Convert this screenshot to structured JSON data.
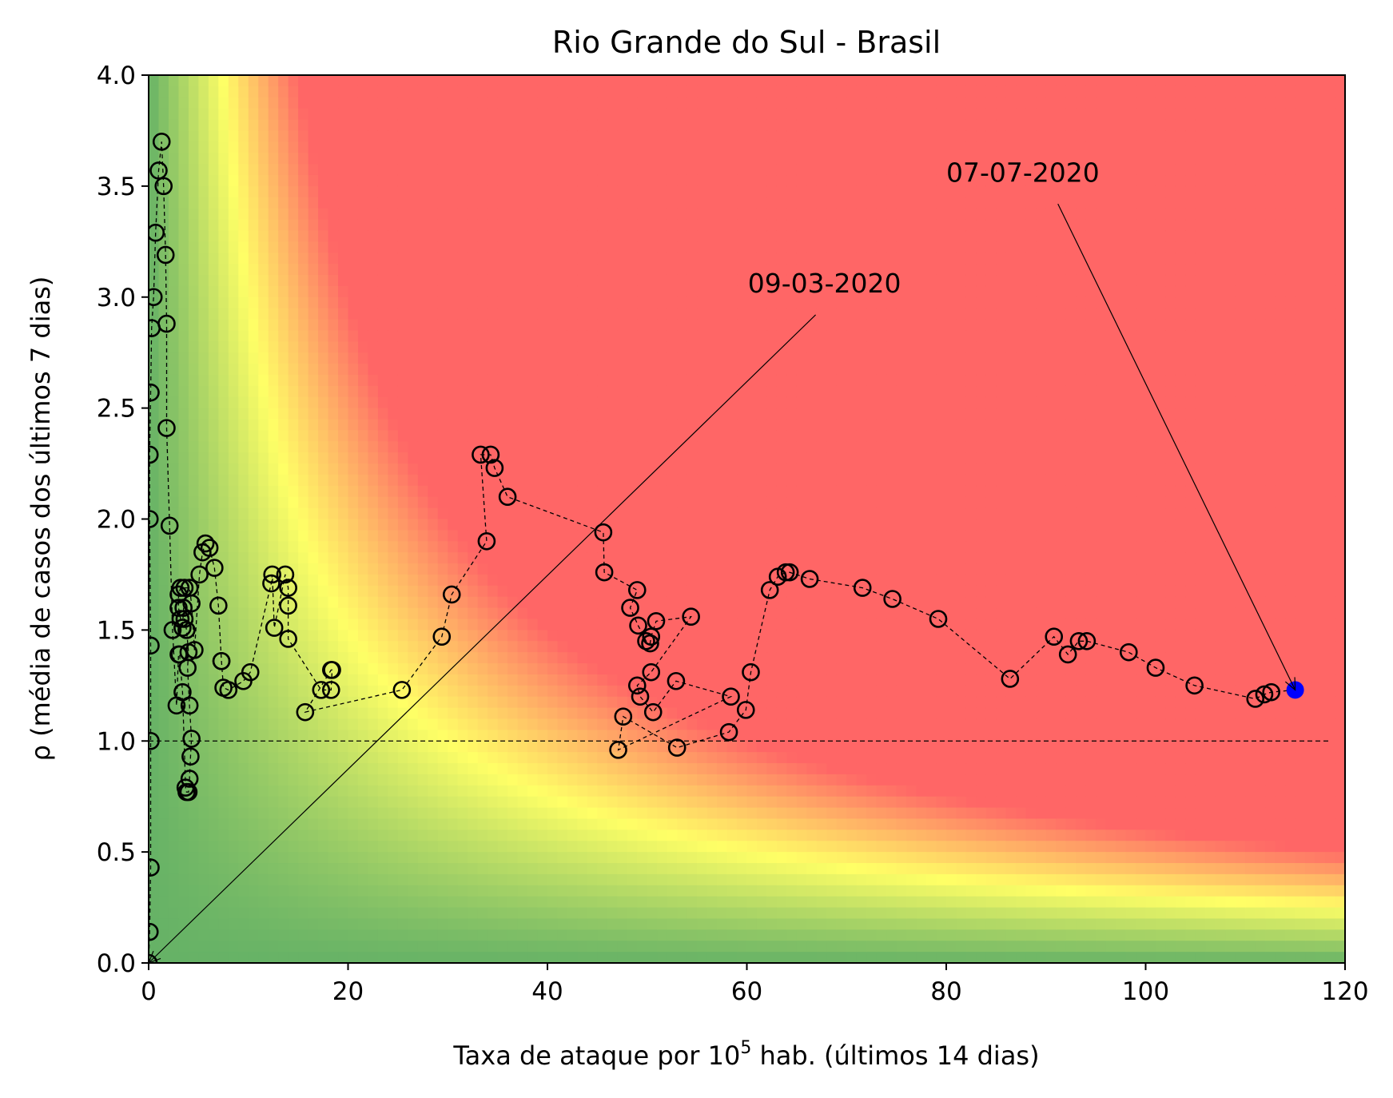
{
  "chart_data": {
    "type": "scatter",
    "title": "Rio Grande do Sul - Brasil",
    "xlabel_main": "Taxa de ataque por 10",
    "xlabel_sup": "5",
    "xlabel_rest": " hab. (últimos 14 dias)",
    "ylabel": "ρ (média de casos dos últimos 7 dias)",
    "xlim": [
      0,
      120
    ],
    "ylim": [
      0,
      4
    ],
    "x_ticks": [
      0,
      20,
      40,
      60,
      80,
      100,
      120
    ],
    "x_tick_labels": [
      "0",
      "20",
      "40",
      "60",
      "80",
      "100",
      "120"
    ],
    "y_ticks": [
      0,
      0.5,
      1,
      1.5,
      2,
      2.5,
      3,
      3.5,
      4
    ],
    "y_tick_labels": [
      "0.0",
      "0.5",
      "1.0",
      "1.5",
      "2.0",
      "2.5",
      "3.0",
      "3.5",
      "4.0"
    ],
    "grid": false,
    "background": "risk heatmap (green = low, yellow = medium, red = high risk, based on rate × ρ)",
    "colors": {
      "low": "#66b266",
      "medium": "#ffff66",
      "high": "#ff6666",
      "marker": "#000000",
      "last_point": "#0000ff"
    },
    "reference_line": {
      "y": 1.0,
      "style": "dashed"
    },
    "series": [
      {
        "marker": "open-circle",
        "line": "dashed",
        "x": [
          0,
          0.1,
          0.2,
          0.2,
          0.2,
          0.1,
          0.1,
          0.2,
          0.3,
          0.5,
          0.7,
          1.0,
          1.3,
          1.5,
          1.7,
          1.8,
          1.8,
          2.1,
          2.4,
          2.8,
          3.0,
          3.1,
          3.4,
          3.7,
          3.8,
          4.0,
          4.1,
          4.2,
          4.3,
          4.1,
          3.9,
          4.0,
          3.8,
          3.6,
          3.5,
          3.4,
          3.2,
          3.0,
          3.0,
          3.2,
          3.6,
          4.1,
          4.3,
          4.6,
          5.1,
          5.4,
          5.7,
          6.1,
          6.6,
          7.0,
          7.3,
          7.3,
          7.5,
          8.0,
          9.5,
          10.2,
          12.3,
          12.4,
          12.6,
          13.7,
          14.0,
          14.0,
          14.0,
          17.3,
          18.3,
          18.4,
          18.3,
          15.7,
          25.4,
          29.4,
          30.4,
          33.9,
          33.3,
          34.3,
          34.7,
          36.0,
          45.6,
          45.7,
          49.0,
          48.3,
          49.1,
          49.9,
          50.3,
          50.4,
          50.9,
          54.4,
          50.4,
          49.0,
          49.3,
          50.6,
          52.9,
          58.4,
          47.1,
          47.6,
          53.0,
          58.2,
          59.9,
          60.4,
          62.3,
          63.1,
          63.9,
          64.3,
          66.3,
          71.6,
          74.6,
          79.2,
          86.4,
          90.8,
          92.2,
          93.3,
          94.1,
          98.3,
          101.0,
          104.9,
          111.0,
          111.9,
          112.6,
          115.0
        ],
        "y": [
          0,
          0.14,
          0.43,
          1.0,
          1.43,
          2.0,
          2.29,
          2.57,
          2.86,
          3.0,
          3.29,
          3.57,
          3.7,
          3.5,
          3.19,
          2.88,
          2.41,
          1.97,
          1.5,
          1.16,
          1.39,
          1.39,
          1.22,
          0.79,
          0.77,
          0.77,
          0.83,
          0.93,
          1.01,
          1.16,
          1.33,
          1.4,
          1.5,
          1.55,
          1.6,
          1.51,
          1.55,
          1.6,
          1.66,
          1.69,
          1.69,
          1.69,
          1.62,
          1.41,
          1.75,
          1.85,
          1.89,
          1.87,
          1.78,
          1.61,
          1.36,
          1.36,
          1.24,
          1.23,
          1.27,
          1.31,
          1.71,
          1.75,
          1.51,
          1.75,
          1.69,
          1.61,
          1.46,
          1.23,
          1.23,
          1.32,
          1.32,
          1.13,
          1.23,
          1.47,
          1.66,
          1.9,
          2.29,
          2.29,
          2.23,
          2.1,
          1.94,
          1.76,
          1.68,
          1.6,
          1.52,
          1.45,
          1.44,
          1.47,
          1.54,
          1.56,
          1.31,
          1.25,
          1.2,
          1.13,
          1.27,
          1.2,
          0.96,
          1.11,
          0.97,
          1.04,
          1.14,
          1.31,
          1.68,
          1.74,
          1.76,
          1.76,
          1.73,
          1.69,
          1.64,
          1.55,
          1.28,
          1.47,
          1.39,
          1.45,
          1.45,
          1.4,
          1.33,
          1.25,
          1.19,
          1.21,
          1.22,
          1.23
        ]
      }
    ],
    "highlight_last_point": true,
    "annotations": [
      {
        "text": "09-03-2020",
        "x": 0,
        "y": 0
      },
      {
        "text": "07-07-2020",
        "x": 115.0,
        "y": 1.23
      }
    ]
  }
}
